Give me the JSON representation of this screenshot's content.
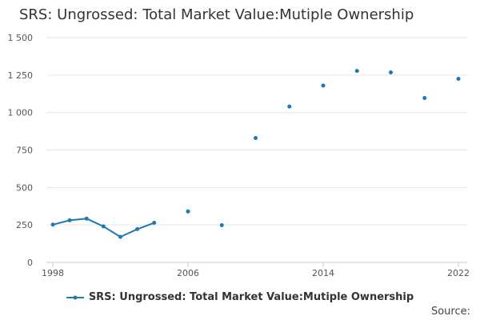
{
  "chart_data": {
    "type": "line",
    "title": "SRS: Ungrossed: Total Market Value:Mutiple Ownership",
    "xlabel": "",
    "ylabel": "",
    "xlim": [
      1998,
      2022
    ],
    "ylim": [
      0,
      1500
    ],
    "x_ticks": [
      1998,
      2006,
      2014,
      2022
    ],
    "y_ticks": [
      0,
      250,
      500,
      750,
      1000,
      1250,
      1500
    ],
    "y_tick_labels": [
      "0",
      "250",
      "500",
      "750",
      "1 000",
      "1 250",
      "1 500"
    ],
    "series": [
      {
        "name": "SRS: Ungrossed: Total Market Value:Mutiple Ownership",
        "color": "#1f77b4",
        "points": [
          {
            "x": 1998,
            "y": 252
          },
          {
            "x": 1999,
            "y": 281
          },
          {
            "x": 2000,
            "y": 292
          },
          {
            "x": 2001,
            "y": 240
          },
          {
            "x": 2002,
            "y": 170
          },
          {
            "x": 2003,
            "y": 222
          },
          {
            "x": 2004,
            "y": 264
          },
          {
            "x": 2006,
            "y": 340
          },
          {
            "x": 2008,
            "y": 248
          },
          {
            "x": 2010,
            "y": 830
          },
          {
            "x": 2012,
            "y": 1040
          },
          {
            "x": 2014,
            "y": 1180
          },
          {
            "x": 2016,
            "y": 1278
          },
          {
            "x": 2018,
            "y": 1268
          },
          {
            "x": 2020,
            "y": 1097
          },
          {
            "x": 2022,
            "y": 1225
          }
        ]
      }
    ],
    "legend_position": "bottom",
    "grid": true
  },
  "source_label": "Source:"
}
